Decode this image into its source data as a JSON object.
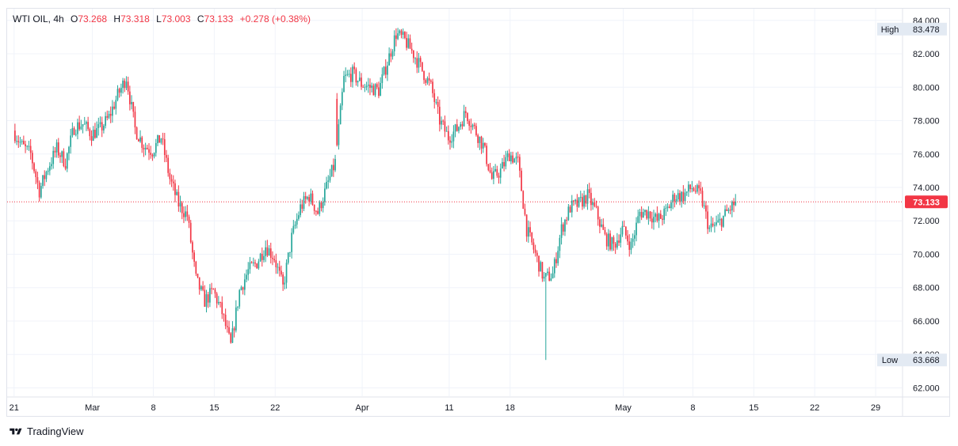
{
  "legend": {
    "symbol": "WTI OIL, 4h",
    "open_label": "O",
    "open": "73.268",
    "high_label": "H",
    "high": "73.318",
    "low_label": "L",
    "low": "73.003",
    "close_label": "C",
    "close": "73.133",
    "change": "+0.278 (+0.38%)"
  },
  "footer": {
    "brand": "TradingView"
  },
  "colors": {
    "up": "#26a69a",
    "down": "#f23645",
    "grid": "#f0f3fa",
    "axis_text": "#131722",
    "last_price_bg": "#f23645",
    "hl_label_bg": "#e3eaf3"
  },
  "chart_data": {
    "type": "candlestick",
    "symbol": "WTI OIL",
    "interval": "4h",
    "x_tick_labels": [
      "21",
      "Mar",
      "8",
      "15",
      "22",
      "Apr",
      "11",
      "18",
      "May",
      "8",
      "15",
      "22",
      "29"
    ],
    "x_tick_days": [
      0,
      9,
      16,
      23,
      30,
      40,
      50,
      57,
      70,
      78,
      85,
      92,
      99
    ],
    "y_ticks": [
      62,
      64,
      66,
      68,
      70,
      72,
      74,
      76,
      78,
      80,
      82,
      84
    ],
    "y_tick_labels": [
      "62.000",
      "64.000",
      "66.000",
      "68.000",
      "70.000",
      "72.000",
      "74.000",
      "76.000",
      "78.000",
      "80.000",
      "82.000",
      "84.000"
    ],
    "ylim": [
      61.5,
      84.7
    ],
    "last_price": 73.133,
    "last_price_label": "73.133",
    "high_marker": {
      "label": "High",
      "value_text": "83.478",
      "value": 83.478
    },
    "low_marker": {
      "label": "Low",
      "value_text": "63.668",
      "value": 63.668
    },
    "grid": true,
    "anchors": [
      [
        0,
        77.4
      ],
      [
        1,
        76.5
      ],
      [
        2,
        76.0
      ],
      [
        3,
        73.8
      ],
      [
        4,
        75.2
      ],
      [
        5,
        76.3
      ],
      [
        6,
        75.5
      ],
      [
        7,
        77.6
      ],
      [
        8,
        77.8
      ],
      [
        9,
        77.2
      ],
      [
        10,
        77.5
      ],
      [
        11,
        78.2
      ],
      [
        12,
        79.5
      ],
      [
        13,
        80.6
      ],
      [
        14,
        77.5
      ],
      [
        15,
        76.5
      ],
      [
        16,
        76.2
      ],
      [
        17,
        77.0
      ],
      [
        18,
        74.5
      ],
      [
        19,
        73.0
      ],
      [
        20,
        72.3
      ],
      [
        21,
        68.5
      ],
      [
        22,
        67.2
      ],
      [
        23,
        67.8
      ],
      [
        24,
        66.5
      ],
      [
        25,
        64.5
      ],
      [
        26,
        67.8
      ],
      [
        27,
        69.0
      ],
      [
        28,
        69.5
      ],
      [
        29,
        70.5
      ],
      [
        30,
        69.8
      ],
      [
        31,
        68.0
      ],
      [
        32,
        71.0
      ],
      [
        33,
        72.8
      ],
      [
        34,
        73.5
      ],
      [
        35,
        72.5
      ],
      [
        36,
        74.0
      ],
      [
        37,
        75.5
      ],
      [
        38,
        80.5
      ],
      [
        39,
        80.8
      ],
      [
        40,
        80.2
      ],
      [
        41,
        80.0
      ],
      [
        42,
        79.8
      ],
      [
        43,
        81.5
      ],
      [
        44,
        83.2
      ],
      [
        45,
        82.8
      ],
      [
        46,
        82.0
      ],
      [
        47,
        81.0
      ],
      [
        48,
        80.0
      ],
      [
        49,
        78.0
      ],
      [
        50,
        77.0
      ],
      [
        51,
        77.5
      ],
      [
        52,
        78.5
      ],
      [
        53,
        77.5
      ],
      [
        54,
        76.5
      ],
      [
        55,
        74.5
      ],
      [
        56,
        75.0
      ],
      [
        57,
        76.0
      ],
      [
        58,
        75.5
      ],
      [
        59,
        71.5
      ],
      [
        60,
        70.0
      ],
      [
        61,
        68.5
      ],
      [
        62,
        68.8
      ],
      [
        63,
        71.5
      ],
      [
        64,
        72.8
      ],
      [
        65,
        73.0
      ],
      [
        66,
        73.5
      ],
      [
        67,
        72.5
      ],
      [
        68,
        71.0
      ],
      [
        69,
        70.5
      ],
      [
        70,
        71.5
      ],
      [
        71,
        70.5
      ],
      [
        72,
        72.5
      ],
      [
        73,
        72.5
      ],
      [
        74,
        72.0
      ],
      [
        75,
        72.5
      ],
      [
        76,
        73.5
      ],
      [
        77,
        73.5
      ],
      [
        78,
        74.0
      ],
      [
        79,
        73.5
      ],
      [
        80,
        71.5
      ],
      [
        81,
        71.8
      ],
      [
        82,
        72.5
      ],
      [
        83,
        73.1
      ]
    ],
    "gap_after_day": 37
  }
}
